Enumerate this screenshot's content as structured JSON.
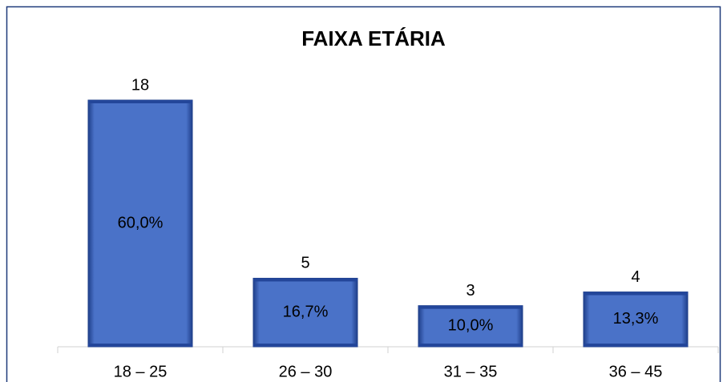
{
  "chart_data": {
    "type": "bar",
    "title": "FAIXA ETÁRIA",
    "categories": [
      "18 – 25",
      "26 – 30",
      "31 – 35",
      "36 – 45"
    ],
    "values": [
      18,
      5,
      3,
      4
    ],
    "shares": [
      60.0,
      16.7,
      10.0,
      13.3
    ],
    "share_labels": [
      "60,0%",
      "16,7%",
      "10,0%",
      "13,3%"
    ],
    "color": "#4a72c8"
  }
}
